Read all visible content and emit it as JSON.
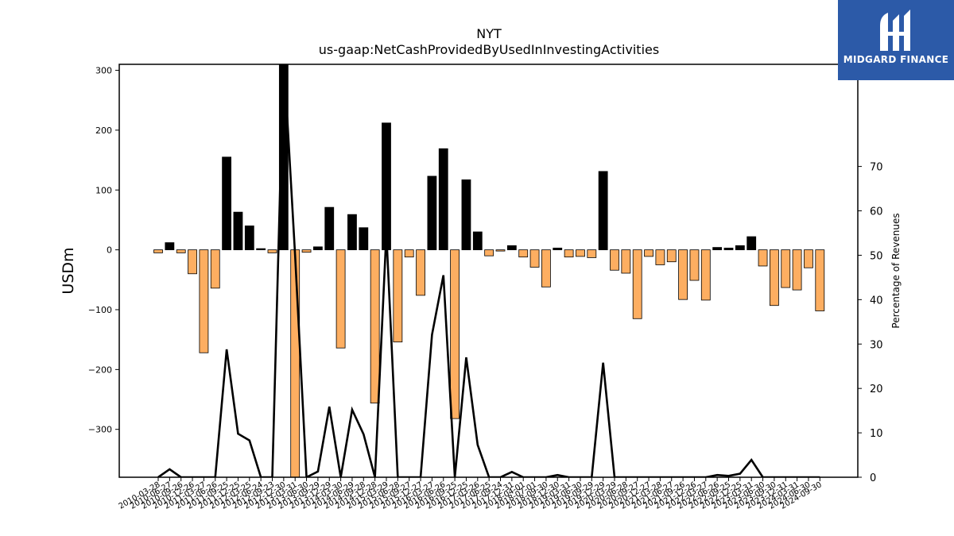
{
  "brand": {
    "name": "MIDGARD FINANCE",
    "color": "#2c5aa8"
  },
  "chart_data": {
    "type": "bar",
    "title": "NYT",
    "subtitle": "us-gaap:NetCashProvidedByUsedInInvestingActivities",
    "ylabel": "USDm",
    "y2label": "Percentage of Revenues",
    "ylim": [
      -380,
      310
    ],
    "y2lim": [
      0,
      93
    ],
    "yticks": [
      -300,
      -200,
      -100,
      0,
      100,
      200,
      300
    ],
    "y2ticks": [
      0,
      10,
      20,
      30,
      40,
      50,
      60,
      70
    ],
    "colors": {
      "positive_bar": "#000000",
      "negative_bar": "#fdae61",
      "line": "#000000"
    },
    "categories": [
      "2010-03-28",
      "2010-06-27",
      "2010-09-26",
      "2010-12-26",
      "2011-03-27",
      "2011-06-26",
      "2011-09-25",
      "2011-12-25",
      "2012-03-25",
      "2012-06-24",
      "2012-09-23",
      "2012-12-30",
      "2013-03-31",
      "2013-06-30",
      "2013-09-29",
      "2013-12-29",
      "2014-03-30",
      "2014-06-29",
      "2014-09-28",
      "2014-12-28",
      "2015-03-29",
      "2015-06-28",
      "2015-09-27",
      "2015-12-27",
      "2016-03-27",
      "2016-06-26",
      "2016-09-25",
      "2016-12-25",
      "2017-03-26",
      "2017-06-25",
      "2017-09-24",
      "2017-12-31",
      "2018-04-01",
      "2018-07-01",
      "2018-09-30",
      "2018-12-30",
      "2019-03-31",
      "2019-06-30",
      "2019-09-29",
      "2019-12-29",
      "2020-03-29",
      "2020-06-28",
      "2020-09-27",
      "2020-12-27",
      "2021-03-28",
      "2021-06-27",
      "2021-09-26",
      "2021-12-26",
      "2022-03-27",
      "2022-06-26",
      "2022-09-25",
      "2022-12-25",
      "2023-03-31",
      "2023-06-30",
      "2023-09-30",
      "2023-12-31",
      "2024-03-31",
      "2024-06-30",
      "2024-09-30"
    ],
    "series": [
      {
        "kind": "bar",
        "values": [
          -5,
          12,
          -5,
          -40,
          -172,
          -64,
          155,
          63,
          40,
          2,
          -5,
          310,
          -400,
          -4,
          5,
          71,
          -164,
          59,
          37,
          -256,
          212,
          -154,
          -12,
          -76,
          123,
          169,
          -282,
          117,
          30,
          -10,
          -2,
          7,
          -12,
          -29,
          -62,
          3,
          -12,
          -11,
          -13,
          131,
          -34,
          -39,
          -115,
          -11,
          -25,
          -20,
          -83,
          -51,
          -84,
          4,
          3,
          7,
          22,
          -27,
          -93,
          -63,
          -67,
          -30,
          -102
        ]
      },
      {
        "kind": "line",
        "axis": "right",
        "values": [
          0,
          1.8,
          0,
          0,
          0,
          0,
          28.8,
          9.8,
          8.3,
          0,
          0,
          95,
          50,
          0,
          1.3,
          15.9,
          0,
          15.2,
          9.7,
          0,
          55,
          0,
          0,
          0,
          32.1,
          45.5,
          0,
          27,
          7.3,
          0,
          0,
          1.2,
          0,
          0,
          0,
          0.5,
          0,
          0,
          0,
          25.8,
          0,
          0,
          0,
          0,
          0,
          0,
          0,
          0,
          0,
          0.5,
          0.3,
          0.8,
          3.9,
          0,
          0,
          0,
          0,
          0,
          0
        ]
      }
    ]
  }
}
